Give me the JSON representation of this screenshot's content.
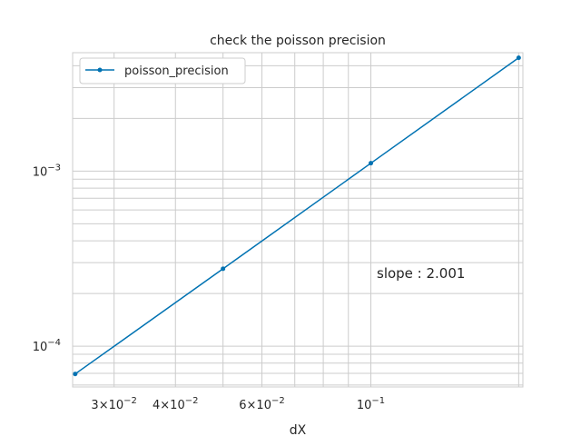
{
  "chart_data": {
    "type": "line",
    "title": "check the poisson precision",
    "xlabel": "dX",
    "ylabel": "",
    "xscale": "log",
    "yscale": "log",
    "xlim": [
      0.0247,
      0.204
    ],
    "ylim": [
      5.85e-05,
      0.00475
    ],
    "grid": true,
    "legend_position": "upper-left",
    "series": [
      {
        "name": "poisson_precision",
        "color": "#0072b2",
        "marker": "circle",
        "x": [
          0.025,
          0.05,
          0.1,
          0.2
        ],
        "y": [
          6.94e-05,
          0.000277,
          0.00111,
          0.00444
        ]
      }
    ],
    "x_tick_labels": [
      {
        "value": 0.03,
        "mantissa": "3",
        "exponent": "−2"
      },
      {
        "value": 0.04,
        "mantissa": "4",
        "exponent": "−2"
      },
      {
        "value": 0.06,
        "mantissa": "6",
        "exponent": "−2"
      },
      {
        "value": 0.1,
        "mantissa": "",
        "exponent": "−1"
      }
    ],
    "y_tick_labels": [
      {
        "value": 0.001,
        "exponent": "−3"
      },
      {
        "value": 0.0001,
        "exponent": "−4"
      }
    ],
    "annotation": "slope : 2.001"
  }
}
